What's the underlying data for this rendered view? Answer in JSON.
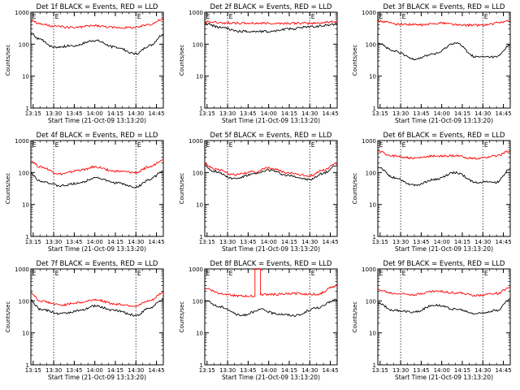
{
  "figure": {
    "background": "#ffffff",
    "axis_color": "#000000",
    "events_color": "#000000",
    "lld_color": "#ff0000"
  },
  "chart_data": [
    {
      "type": "line",
      "title": "Det 1f BLACK = Events, RED = LLD",
      "xlabel": "Start Time (21-Oct-09 13:13:20)",
      "ylabel": "Counts/sec",
      "yscale": "log",
      "ylim": [
        1,
        1000
      ],
      "yticks": [
        "1",
        "10",
        "100",
        "1000"
      ],
      "xlim": [
        "13:13:20",
        "14:50:00"
      ],
      "xticks": [
        "13:15",
        "13:30",
        "13:45",
        "14:00",
        "14:15",
        "14:30",
        "14:45"
      ],
      "markers": [
        "13:30:00",
        "14:30:00"
      ],
      "marker_labels": [
        "E",
        "E"
      ],
      "series": [
        {
          "name": "LLD",
          "color": "#ff0000",
          "x": [
            "13:13:20",
            "13:20",
            "13:30",
            "13:45",
            "14:00",
            "14:15",
            "14:30",
            "14:40",
            "14:50"
          ],
          "y": [
            550,
            430,
            360,
            330,
            380,
            330,
            330,
            420,
            600
          ]
        },
        {
          "name": "Events",
          "color": "#000000",
          "x": [
            "13:13:20",
            "13:20",
            "13:30",
            "13:45",
            "14:00",
            "14:15",
            "14:30",
            "14:40",
            "14:50"
          ],
          "y": [
            210,
            140,
            80,
            90,
            130,
            80,
            50,
            90,
            200
          ]
        }
      ]
    },
    {
      "type": "line",
      "title": "Det 2f BLACK = Events, RED = LLD",
      "xlabel": "Start Time (21-Oct-09 13:13:20)",
      "ylabel": "Counts/sec",
      "yscale": "log",
      "ylim": [
        1,
        1000
      ],
      "yticks": [
        "1",
        "10",
        "100",
        "1000"
      ],
      "xlim": [
        "13:13:20",
        "14:50:00"
      ],
      "xticks": [
        "13:15",
        "13:30",
        "13:45",
        "14:00",
        "14:15",
        "14:30",
        "14:45"
      ],
      "markers": [
        "13:30:00",
        "14:30:00"
      ],
      "marker_labels": [
        "E",
        "E"
      ],
      "series": [
        {
          "name": "LLD",
          "color": "#ff0000",
          "x": [
            "13:13:20",
            "13:30",
            "13:45",
            "14:00",
            "14:15",
            "14:30",
            "14:50"
          ],
          "y": [
            500,
            460,
            450,
            450,
            450,
            450,
            500
          ]
        },
        {
          "name": "Events",
          "color": "#000000",
          "x": [
            "13:13:20",
            "13:25",
            "13:40",
            "14:00",
            "14:15",
            "14:30",
            "14:50"
          ],
          "y": [
            440,
            330,
            250,
            250,
            300,
            350,
            420
          ]
        }
      ]
    },
    {
      "type": "line",
      "title": "Det 3f BLACK = Events, RED = LLD",
      "xlabel": "Start Time (21-Oct-09 13:13:20)",
      "ylabel": "Counts/sec",
      "yscale": "log",
      "ylim": [
        1,
        1000
      ],
      "yticks": [
        "1",
        "10",
        "100",
        "1000"
      ],
      "xlim": [
        "13:13:20",
        "14:50:00"
      ],
      "xticks": [
        "13:15",
        "13:30",
        "13:45",
        "14:00",
        "14:15",
        "14:30",
        "14:45"
      ],
      "markers": [
        "13:30:00",
        "14:30:00"
      ],
      "marker_labels": [
        "E",
        "E"
      ],
      "series": [
        {
          "name": "LLD",
          "color": "#ff0000",
          "x": [
            "13:13:20",
            "13:30",
            "13:45",
            "14:00",
            "14:15",
            "14:30",
            "14:50"
          ],
          "y": [
            520,
            420,
            400,
            460,
            390,
            400,
            520
          ]
        },
        {
          "name": "Events",
          "color": "#000000",
          "x": [
            "13:13:20",
            "13:25",
            "13:40",
            "13:55",
            "14:10",
            "14:25",
            "14:40",
            "14:50"
          ],
          "y": [
            110,
            60,
            35,
            50,
            110,
            40,
            40,
            95
          ]
        }
      ]
    },
    {
      "type": "line",
      "title": "Det 4f BLACK = Events, RED = LLD",
      "xlabel": "Start Time (21-Oct-09 13:13:20)",
      "ylabel": "Counts/sec",
      "yscale": "log",
      "ylim": [
        1,
        1000
      ],
      "yticks": [
        "1",
        "10",
        "100",
        "1000"
      ],
      "xlim": [
        "13:13:20",
        "14:50:00"
      ],
      "xticks": [
        "13:15",
        "13:30",
        "13:45",
        "14:00",
        "14:15",
        "14:30",
        "14:45"
      ],
      "markers": [
        "13:30:00",
        "14:30:00"
      ],
      "marker_labels": [
        "E",
        "E"
      ],
      "series": [
        {
          "name": "LLD",
          "color": "#ff0000",
          "x": [
            "13:13:20",
            "13:20",
            "13:35",
            "13:50",
            "14:00",
            "14:15",
            "14:30",
            "14:40",
            "14:50"
          ],
          "y": [
            230,
            150,
            90,
            120,
            150,
            110,
            100,
            150,
            260
          ]
        },
        {
          "name": "Events",
          "color": "#000000",
          "x": [
            "13:13:20",
            "13:20",
            "13:35",
            "13:50",
            "14:00",
            "14:15",
            "14:30",
            "14:40",
            "14:50"
          ],
          "y": [
            90,
            55,
            38,
            48,
            70,
            48,
            35,
            60,
            110
          ]
        }
      ]
    },
    {
      "type": "line",
      "title": "Det 5f BLACK = Events, RED = LLD",
      "xlabel": "Start Time (21-Oct-09 13:13:20)",
      "ylabel": "Counts/sec",
      "yscale": "log",
      "ylim": [
        1,
        1000
      ],
      "yticks": [
        "1",
        "10",
        "100",
        "1000"
      ],
      "xlim": [
        "13:13:20",
        "14:50:00"
      ],
      "xticks": [
        "13:15",
        "13:30",
        "13:45",
        "14:00",
        "14:15",
        "14:30",
        "14:45"
      ],
      "markers": [
        "13:30:00",
        "14:30:00"
      ],
      "marker_labels": [
        "E",
        "E"
      ],
      "series": [
        {
          "name": "LLD",
          "color": "#ff0000",
          "x": [
            "13:13:20",
            "13:20",
            "13:35",
            "13:50",
            "14:00",
            "14:15",
            "14:30",
            "14:40",
            "14:50"
          ],
          "y": [
            190,
            130,
            85,
            105,
            140,
            95,
            80,
            120,
            200
          ]
        },
        {
          "name": "Events",
          "color": "#000000",
          "x": [
            "13:13:20",
            "13:20",
            "13:35",
            "13:50",
            "14:00",
            "14:15",
            "14:30",
            "14:40",
            "14:50"
          ],
          "y": [
            160,
            110,
            65,
            90,
            120,
            80,
            60,
            95,
            170
          ]
        }
      ]
    },
    {
      "type": "line",
      "title": "Det 6f BLACK = Events, RED = LLD",
      "xlabel": "Start Time (21-Oct-09 13:13:20)",
      "ylabel": "Counts/sec",
      "yscale": "log",
      "ylim": [
        1,
        1000
      ],
      "yticks": [
        "1",
        "10",
        "100",
        "1000"
      ],
      "xlim": [
        "13:13:20",
        "14:50:00"
      ],
      "xticks": [
        "13:15",
        "13:30",
        "13:45",
        "14:00",
        "14:15",
        "14:30",
        "14:45"
      ],
      "markers": [
        "13:30:00",
        "14:30:00"
      ],
      "marker_labels": [
        "E",
        "E"
      ],
      "series": [
        {
          "name": "LLD",
          "color": "#ff0000",
          "x": [
            "13:13:20",
            "13:25",
            "13:40",
            "13:55",
            "14:10",
            "14:25",
            "14:40",
            "14:50"
          ],
          "y": [
            450,
            330,
            280,
            330,
            330,
            270,
            330,
            480
          ]
        },
        {
          "name": "Events",
          "color": "#000000",
          "x": [
            "13:13:20",
            "13:25",
            "13:40",
            "13:55",
            "14:10",
            "14:25",
            "14:40",
            "14:50"
          ],
          "y": [
            150,
            70,
            40,
            60,
            100,
            50,
            50,
            130
          ]
        }
      ]
    },
    {
      "type": "line",
      "title": "Det 7f BLACK = Events, RED = LLD",
      "xlabel": "Start Time (21-Oct-09 13:13:20)",
      "ylabel": "Counts/sec",
      "yscale": "log",
      "ylim": [
        1,
        1000
      ],
      "yticks": [
        "1",
        "10",
        "100",
        "1000"
      ],
      "xlim": [
        "13:13:20",
        "14:50:00"
      ],
      "xticks": [
        "13:15",
        "13:30",
        "13:45",
        "14:00",
        "14:15",
        "14:30",
        "14:45"
      ],
      "markers": [
        "13:30:00",
        "14:30:00"
      ],
      "marker_labels": [
        "E",
        "E"
      ],
      "series": [
        {
          "name": "LLD",
          "color": "#ff0000",
          "x": [
            "13:13:20",
            "13:20",
            "13:35",
            "13:50",
            "14:00",
            "14:15",
            "14:30",
            "14:40",
            "14:50"
          ],
          "y": [
            180,
            100,
            75,
            90,
            110,
            80,
            70,
            100,
            180
          ]
        },
        {
          "name": "Events",
          "color": "#000000",
          "x": [
            "13:13:20",
            "13:20",
            "13:35",
            "13:50",
            "14:00",
            "14:15",
            "14:30",
            "14:40",
            "14:50"
          ],
          "y": [
            100,
            55,
            40,
            50,
            70,
            50,
            35,
            60,
            110
          ]
        }
      ]
    },
    {
      "type": "line",
      "title": "Det 8f BLACK = Events, RED = LLD",
      "xlabel": "Start Time (21-Oct-09 13:13:20)",
      "ylabel": "Counts/sec",
      "yscale": "log",
      "ylim": [
        1,
        1000
      ],
      "yticks": [
        "1",
        "10",
        "100",
        "1000"
      ],
      "xlim": [
        "13:13:20",
        "14:50:00"
      ],
      "xticks": [
        "13:15",
        "13:30",
        "13:45",
        "14:00",
        "14:15",
        "14:30",
        "14:45"
      ],
      "markers": [
        "13:30:00",
        "14:30:00"
      ],
      "marker_labels": [
        "E",
        "E"
      ],
      "series": [
        {
          "name": "LLD",
          "color": "#ff0000",
          "x": [
            "13:13:20",
            "13:25",
            "13:40",
            "13:50",
            "13:50",
            "13:54",
            "13:54",
            "14:05",
            "14:20",
            "14:35",
            "14:50"
          ],
          "y": [
            250,
            170,
            140,
            140,
            1000,
            1000,
            160,
            160,
            170,
            160,
            300
          ]
        },
        {
          "name": "Events",
          "color": "#000000",
          "x": [
            "13:13:20",
            "13:25",
            "13:40",
            "13:50",
            "13:54",
            "14:05",
            "14:20",
            "14:35",
            "14:50"
          ],
          "y": [
            100,
            65,
            35,
            45,
            55,
            40,
            35,
            60,
            110
          ]
        }
      ]
    },
    {
      "type": "line",
      "title": "Det 9f BLACK = Events, RED = LLD",
      "xlabel": "Start Time (21-Oct-09 13:13:20)",
      "ylabel": "Counts/sec",
      "yscale": "log",
      "ylim": [
        1,
        1000
      ],
      "yticks": [
        "1",
        "10",
        "100",
        "1000"
      ],
      "xlim": [
        "13:13:20",
        "14:50:00"
      ],
      "xticks": [
        "13:15",
        "13:30",
        "13:45",
        "14:00",
        "14:15",
        "14:30",
        "14:45"
      ],
      "markers": [
        "13:30:00",
        "14:30:00"
      ],
      "marker_labels": [
        "E",
        "E"
      ],
      "series": [
        {
          "name": "LLD",
          "color": "#ff0000",
          "x": [
            "13:13:20",
            "13:25",
            "13:40",
            "13:55",
            "14:10",
            "14:25",
            "14:40",
            "14:50"
          ],
          "y": [
            220,
            170,
            160,
            200,
            180,
            150,
            170,
            260
          ]
        },
        {
          "name": "Events",
          "color": "#000000",
          "x": [
            "13:13:20",
            "13:25",
            "13:40",
            "13:55",
            "14:10",
            "14:25",
            "14:40",
            "14:50"
          ],
          "y": [
            85,
            50,
            45,
            75,
            55,
            40,
            50,
            110
          ]
        }
      ]
    }
  ]
}
